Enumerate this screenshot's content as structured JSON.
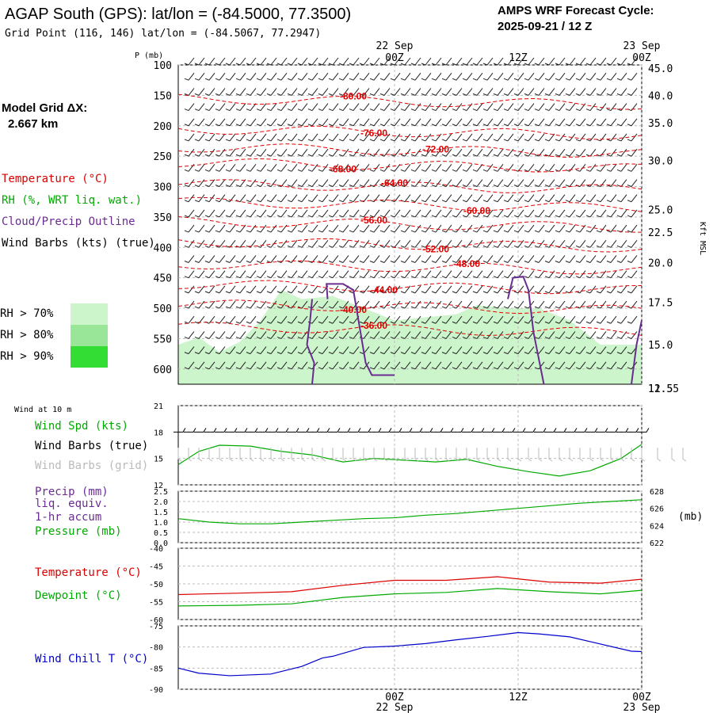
{
  "header": {
    "title": "AGAP South (GPS):  lat/lon = (-84.5000, 77.3500)",
    "subtitle": "Grid Point (116, 146) lat/lon = (-84.5067, 77.2947)",
    "forecast_label": "AMPS WRF Forecast Cycle:",
    "forecast_cycle": "2025-09-21 / 12  Z"
  },
  "left_legend": {
    "grid_label": "Model Grid ΔX:",
    "grid_value": "2.667 km",
    "temperature": "Temperature (°C)",
    "rh": "RH (%, WRT liq. wat.)",
    "cloud": "Cloud/Precip Outline",
    "wind_barbs": "Wind Barbs (kts) (true)",
    "rh_levels": [
      {
        "label": "RH > 70%",
        "color": "#ccf5cc"
      },
      {
        "label": "RH > 80%",
        "color": "#99e699"
      },
      {
        "label": "RH > 90%",
        "color": "#33dd33"
      }
    ]
  },
  "time_axis": {
    "top": [
      {
        "date": "22 Sep",
        "time": "00Z"
      },
      {
        "date": "",
        "time": "12Z"
      },
      {
        "date": "23 Sep",
        "time": "00Z"
      }
    ],
    "bottom": [
      {
        "time": "00Z",
        "date": "22 Sep"
      },
      {
        "time": "12Z",
        "date": ""
      },
      {
        "time": "00Z",
        "date": "23 Sep"
      }
    ]
  },
  "chart_data": [
    {
      "type": "heatmap",
      "name": "upper-air-cross-section",
      "ylabel": "P (mb)",
      "ylabel_right": "Kft MSL",
      "ylim": [
        100,
        625
      ],
      "xlim": [
        -21,
        24
      ],
      "pressure_ticks": [
        100,
        150,
        200,
        250,
        300,
        350,
        400,
        450,
        500,
        550,
        600
      ],
      "height_ticks": [
        "45.0",
        "40.0",
        "35.0",
        "30.0",
        "25.0",
        "22.5",
        "20.0",
        "17.5",
        "15.0",
        "12.5",
        "11.55"
      ],
      "height_tick_pressure": [
        105,
        150,
        195,
        257,
        338,
        375,
        425,
        490,
        560,
        640,
        665
      ],
      "temperature_contours": [
        {
          "label": "-80.00",
          "pressure": 160,
          "label_x": -4
        },
        {
          "label": "-76.00",
          "pressure": 210,
          "label_x": -2
        },
        {
          "label": "-72.00",
          "pressure": 240,
          "label_x": 4
        },
        {
          "label": "-68.00",
          "pressure": 265,
          "label_x": -5
        },
        {
          "label": "-64.00",
          "pressure": 300,
          "label_x": 0
        },
        {
          "label": "-60.00",
          "pressure": 330,
          "label_x": 8
        },
        {
          "label": "-56.00",
          "pressure": 362,
          "label_x": -2
        },
        {
          "label": "-52.00",
          "pressure": 395,
          "label_x": 4
        },
        {
          "label": "-48.00",
          "pressure": 432,
          "label_x": 7
        },
        {
          "label": "-44.00",
          "pressure": 465,
          "label_x": -1
        },
        {
          "label": "-40.00",
          "pressure": 498,
          "label_x": -4
        },
        {
          "label": "-36.00",
          "pressure": 535,
          "label_x": -2
        }
      ]
    },
    {
      "type": "line",
      "name": "wind-at-10m",
      "title": "Wind at 10 m",
      "ylim": [
        12,
        21
      ],
      "yticks": [
        12,
        15,
        18,
        21
      ],
      "legend": [
        "Wind Spd (kts)",
        "Wind Barbs (true)",
        "Wind Barbs (grid)"
      ],
      "series": [
        {
          "name": "Wind Spd (kts)",
          "color": "#00aa00",
          "x": [
            -21,
            -19,
            -17,
            -14,
            -11,
            -8,
            -5,
            -2,
            1,
            4,
            7,
            10,
            13,
            16,
            19,
            22,
            24
          ],
          "values": [
            14.3,
            15.8,
            16.5,
            16.4,
            15.8,
            15.4,
            14.6,
            15.0,
            14.8,
            14.6,
            14.9,
            14.1,
            13.5,
            13.0,
            13.6,
            15.0,
            16.6
          ]
        }
      ]
    },
    {
      "type": "line",
      "name": "precip-pressure",
      "yticks": [
        "0.0",
        "0.5",
        "1.0",
        "1.5",
        "2.0",
        "2.5"
      ],
      "ylim": [
        0,
        2.5
      ],
      "ylim_right": [
        622,
        628
      ],
      "yticks_right": [
        622,
        624,
        626,
        628
      ],
      "ylabel_right": "(mb)",
      "legend": [
        "Precip (mm)",
        "liq. equiv.",
        "1-hr accum",
        "Pressure (mb)"
      ],
      "series": [
        {
          "name": "Pressure (mb)",
          "color": "#00aa00",
          "x": [
            -21,
            -18,
            -15,
            -12,
            -9,
            -6,
            -3,
            0,
            3,
            6,
            9,
            12,
            15,
            18,
            21,
            24
          ],
          "values": [
            624.8,
            624.4,
            624.2,
            624.2,
            624.4,
            624.6,
            624.8,
            624.9,
            625.2,
            625.4,
            625.7,
            626.0,
            626.3,
            626.6,
            626.8,
            627.0
          ]
        }
      ]
    },
    {
      "type": "line",
      "name": "temperature-dewpoint",
      "ylim": [
        -60,
        -40
      ],
      "yticks": [
        -40,
        -45,
        -50,
        -55,
        -60
      ],
      "legend": [
        "Temperature (°C)",
        "Dewpoint (°C)"
      ],
      "series": [
        {
          "name": "Temperature (°C)",
          "color": "#dd0000",
          "x": [
            -21,
            -15,
            -10,
            -5,
            0,
            5,
            10,
            15,
            20,
            24
          ],
          "values": [
            -53.0,
            -52.6,
            -52.2,
            -50.4,
            -49.0,
            -49.0,
            -48.0,
            -49.5,
            -49.8,
            -48.7
          ]
        },
        {
          "name": "Dewpoint (°C)",
          "color": "#00aa00",
          "x": [
            -21,
            -15,
            -10,
            -5,
            0,
            5,
            10,
            15,
            20,
            24
          ],
          "values": [
            -56.2,
            -56.0,
            -55.6,
            -53.8,
            -52.8,
            -52.4,
            -51.3,
            -52.2,
            -52.8,
            -51.8
          ]
        }
      ]
    },
    {
      "type": "line",
      "name": "wind-chill",
      "ylim": [
        -90,
        -75
      ],
      "yticks": [
        -75,
        -80,
        -85,
        -90
      ],
      "legend": [
        "Wind Chill T (°C)"
      ],
      "series": [
        {
          "name": "Wind Chill T (°C)",
          "color": "#0000cc",
          "x": [
            -21,
            -19,
            -16,
            -12,
            -9,
            -7,
            -6,
            -3,
            0,
            3,
            6,
            9,
            12,
            14,
            17,
            20,
            23,
            24
          ],
          "values": [
            -85.0,
            -86.2,
            -86.8,
            -86.4,
            -84.6,
            -82.6,
            -82.2,
            -80.1,
            -79.8,
            -79.2,
            -78.3,
            -77.5,
            -76.6,
            -76.9,
            -77.6,
            -79.3,
            -81.0,
            -81.1
          ]
        }
      ]
    }
  ]
}
